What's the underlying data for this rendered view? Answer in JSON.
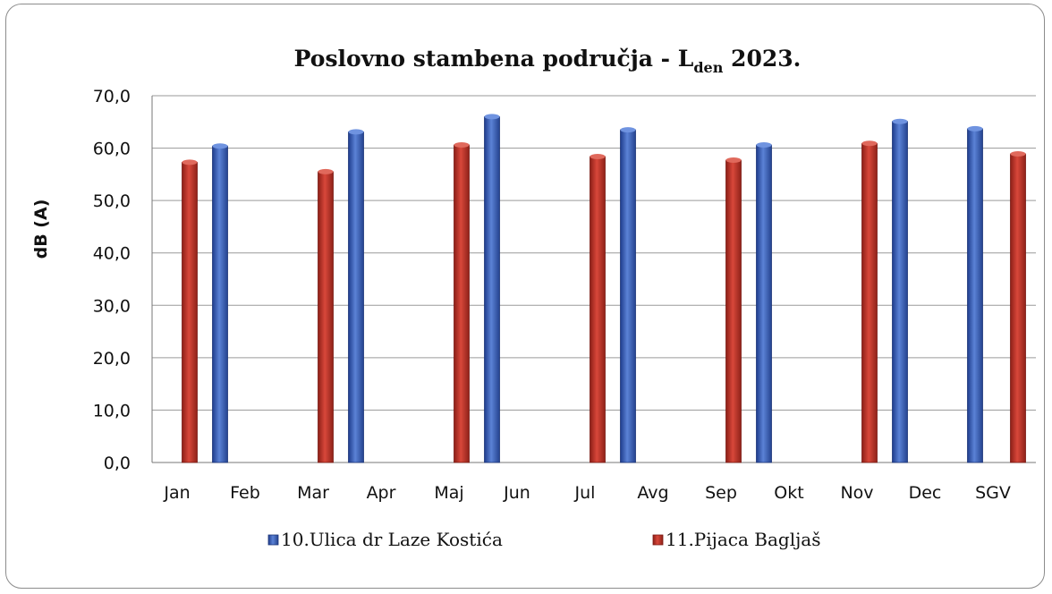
{
  "chart_data": {
    "type": "bar",
    "title": "Poslovno stambena područja - L",
    "title_sub": "den",
    "title_suffix": " 2023.",
    "ylabel": "dB (A)",
    "xlabel": "",
    "ylim": [
      0,
      70
    ],
    "yticks": [
      "0,0",
      "10,0",
      "20,0",
      "30,0",
      "40,0",
      "50,0",
      "60,0",
      "70,0"
    ],
    "grid": true,
    "legend_position": "bottom",
    "categories": [
      "Jan",
      "Feb",
      "Mar",
      "Apr",
      "Maj",
      "Jun",
      "Jul",
      "Avg",
      "Sep",
      "Okt",
      "Nov",
      "Dec",
      "SGV"
    ],
    "series": [
      {
        "name": "10.Ulica dr Laze Kostića",
        "color": "#3a5fb8",
        "values": [
          null,
          60.4,
          null,
          63.1,
          null,
          66.0,
          null,
          63.5,
          null,
          60.6,
          null,
          65.1,
          63.7
        ]
      },
      {
        "name": "11.Pijaca Bagljaš",
        "color": "#c0392b",
        "values": [
          57.3,
          null,
          55.5,
          null,
          60.6,
          null,
          58.4,
          null,
          57.7,
          null,
          60.9,
          null,
          58.9
        ]
      }
    ]
  }
}
